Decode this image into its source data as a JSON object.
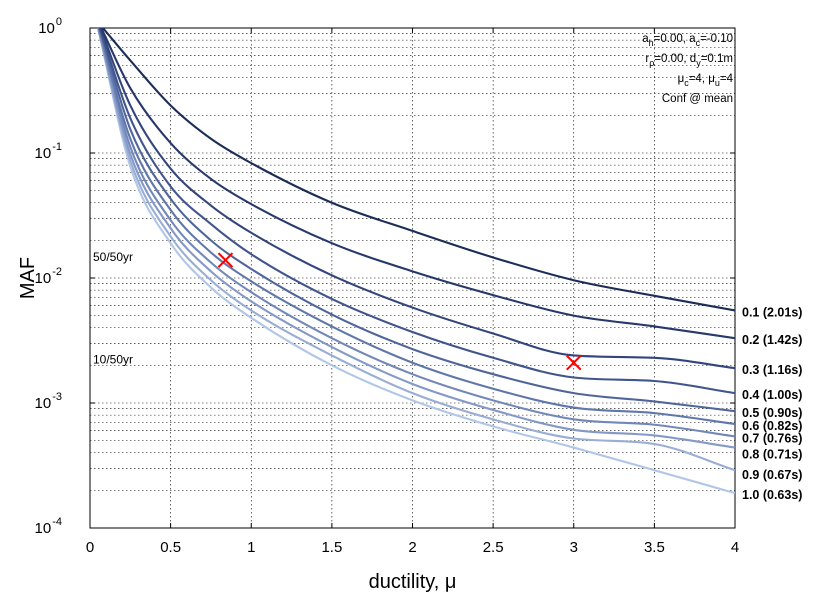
{
  "chart_data": {
    "type": "line",
    "xlabel": "ductility, μ",
    "ylabel": "MAF",
    "xlim": [
      0,
      4
    ],
    "ylim": [
      0.0001,
      1
    ],
    "y_scale": "log",
    "grid": true,
    "x_ticks": [
      "0",
      "0.5",
      "1",
      "1.5",
      "2",
      "2.5",
      "3",
      "3.5",
      "4"
    ],
    "y_ticks": [
      {
        "base": "10",
        "exp": "-4"
      },
      {
        "base": "10",
        "exp": "-3"
      },
      {
        "base": "10",
        "exp": "-2"
      },
      {
        "base": "10",
        "exp": "-1"
      },
      {
        "base": "10",
        "exp": "0"
      }
    ],
    "hazard_levels": [
      {
        "label": "50/50yr",
        "y": 0.0139
      },
      {
        "label": "10/50yr",
        "y": 0.0021
      }
    ],
    "parameters": [
      "a_h=0.00, a_c=-0.10",
      "r_ρ=0.00, d_y=0.1m",
      "μ_c=4, μ_u=4",
      "Conf @ mean"
    ],
    "series": [
      {
        "name": "0.1 (2.01s)",
        "color": "#1c2d57",
        "x": [
          0.08,
          0.25,
          0.5,
          0.75,
          1,
          1.5,
          2,
          2.5,
          3,
          3.5,
          4
        ],
        "y": [
          1,
          0.55,
          0.24,
          0.13,
          0.083,
          0.04,
          0.0238,
          0.0146,
          0.0096,
          0.0072,
          0.0055
        ]
      },
      {
        "name": "0.2 (1.42s)",
        "color": "#27386a",
        "x": [
          0.07,
          0.25,
          0.5,
          0.75,
          1,
          1.5,
          2,
          2.5,
          3,
          3.5,
          4
        ],
        "y": [
          1,
          0.33,
          0.12,
          0.062,
          0.039,
          0.019,
          0.0113,
          0.0073,
          0.005,
          0.0041,
          0.0033
        ]
      },
      {
        "name": "0.3 (1.16s)",
        "color": "#33467c",
        "x": [
          0.065,
          0.25,
          0.5,
          0.75,
          1,
          1.5,
          2,
          2.5,
          3,
          3.5,
          4
        ],
        "y": [
          1,
          0.24,
          0.075,
          0.038,
          0.023,
          0.0105,
          0.0058,
          0.0036,
          0.0024,
          0.0023,
          0.0019
        ]
      },
      {
        "name": "0.4 (1.00s)",
        "color": "#40558c",
        "x": [
          0.06,
          0.25,
          0.5,
          0.75,
          1,
          1.5,
          2,
          2.5,
          3,
          3.5,
          4
        ],
        "y": [
          1,
          0.19,
          0.054,
          0.027,
          0.0155,
          0.0068,
          0.0037,
          0.0023,
          0.0016,
          0.0015,
          0.0012
        ]
      },
      {
        "name": "0.5 (0.90s)",
        "color": "#50669b",
        "x": [
          0.06,
          0.25,
          0.5,
          0.75,
          1,
          1.5,
          2,
          2.5,
          3,
          3.5,
          4
        ],
        "y": [
          1,
          0.155,
          0.043,
          0.02,
          0.0118,
          0.0051,
          0.0027,
          0.0017,
          0.0012,
          0.00103,
          0.00086
        ]
      },
      {
        "name": "0.6 (0.82s)",
        "color": "#6077aa",
        "x": [
          0.055,
          0.25,
          0.5,
          0.75,
          1,
          1.5,
          2,
          2.5,
          3,
          3.5,
          4
        ],
        "y": [
          1,
          0.13,
          0.035,
          0.016,
          0.0094,
          0.0041,
          0.0021,
          0.0013,
          0.00092,
          0.00083,
          0.00068
        ]
      },
      {
        "name": "0.7 (0.76s)",
        "color": "#7288b9",
        "x": [
          0.055,
          0.25,
          0.5,
          0.75,
          1,
          1.5,
          2,
          2.5,
          3,
          3.5,
          4
        ],
        "y": [
          1,
          0.112,
          0.029,
          0.0133,
          0.0077,
          0.0033,
          0.0017,
          0.00105,
          0.00074,
          0.00067,
          0.00054
        ]
      },
      {
        "name": "0.8 (0.71s)",
        "color": "#8499c7",
        "x": [
          0.05,
          0.25,
          0.5,
          0.75,
          1,
          1.5,
          2,
          2.5,
          3,
          3.5,
          4
        ],
        "y": [
          1,
          0.098,
          0.025,
          0.0113,
          0.0065,
          0.0028,
          0.00142,
          0.00088,
          0.00061,
          0.00055,
          0.00044
        ]
      },
      {
        "name": "0.9 (0.67s)",
        "color": "#99add5",
        "x": [
          0.05,
          0.25,
          0.5,
          0.75,
          1,
          1.5,
          2,
          2.5,
          3,
          3.5,
          4
        ],
        "y": [
          1,
          0.087,
          0.0215,
          0.0096,
          0.0055,
          0.0024,
          0.0012,
          0.00074,
          0.00052,
          0.00047,
          0.00029
        ]
      },
      {
        "name": "1.0 (0.63s)",
        "color": "#b2c6e7",
        "x": [
          0.05,
          0.25,
          0.5,
          0.75,
          1,
          1.5,
          2,
          2.5,
          3,
          3.5,
          4
        ],
        "y": [
          1,
          0.078,
          0.019,
          0.0084,
          0.0048,
          0.002,
          0.00105,
          0.00065,
          0.00044,
          0.00029,
          0.00019
        ]
      }
    ],
    "markers": [
      {
        "x": 0.84,
        "y": 0.0139,
        "color": "#ff0000"
      },
      {
        "x": 3.0,
        "y": 0.0021,
        "color": "#ff0000"
      }
    ]
  }
}
